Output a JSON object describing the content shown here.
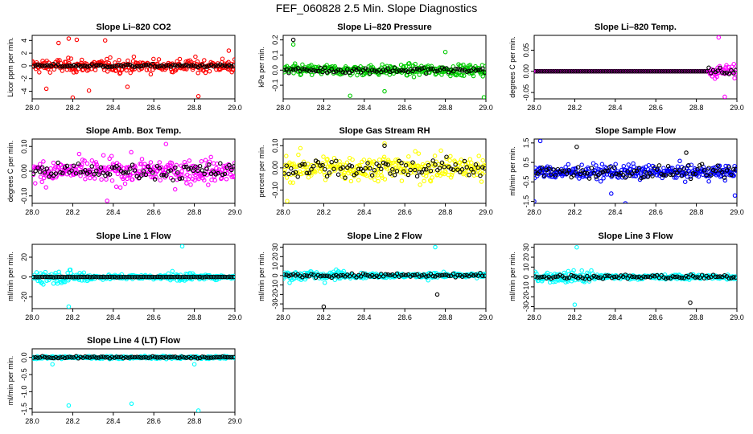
{
  "figure_title": "FEF_060828  2.5 Min. Slope Diagnostics",
  "chart_data": [
    {
      "type": "scatter",
      "title": "Slope Li–820 CO2",
      "ylabel": "Licor ppm per min.",
      "xlabel": "",
      "xlim": [
        28.0,
        29.0
      ],
      "ylim": [
        -5.2,
        4.8
      ],
      "xticks": [
        "28.0",
        "28.2",
        "28.4",
        "28.6",
        "28.8",
        "29.0"
      ],
      "yticks": [
        {
          "v": -4,
          "label": "-4"
        },
        {
          "v": -2,
          "label": "-2"
        },
        {
          "v": 0,
          "label": "0"
        },
        {
          "v": 2,
          "label": "2"
        },
        {
          "v": 4,
          "label": "4"
        }
      ],
      "series": [
        {
          "color": "#ff0000",
          "spread": 1.6,
          "outliers": [
            [
              28.07,
              -3.6
            ],
            [
              28.13,
              3.6
            ],
            [
              28.18,
              4.3
            ],
            [
              28.2,
              -5.0
            ],
            [
              28.22,
              4.1
            ],
            [
              28.28,
              -3.9
            ],
            [
              28.36,
              4.0
            ],
            [
              28.47,
              -3.3
            ],
            [
              28.82,
              -4.8
            ],
            [
              28.97,
              2.4
            ]
          ]
        },
        {
          "color": "#000000",
          "spread": 0.35,
          "outliers": []
        }
      ]
    },
    {
      "type": "scatter",
      "title": "Slope Li–820 Pressure",
      "ylabel": "kPa per min.",
      "xlabel": "",
      "xlim": [
        28.0,
        29.0
      ],
      "ylim": [
        -0.19,
        0.23
      ],
      "xticks": [
        "28.0",
        "28.2",
        "28.4",
        "28.6",
        "28.8",
        "29.0"
      ],
      "yticks": [
        {
          "v": -0.1,
          "label": "-0.1"
        },
        {
          "v": 0.0,
          "label": "0.0"
        },
        {
          "v": 0.1,
          "label": "0.1"
        },
        {
          "v": 0.2,
          "label": "0.2"
        }
      ],
      "series": [
        {
          "color": "#00cc00",
          "spread": 0.055,
          "outliers": [
            [
              28.05,
              0.17
            ],
            [
              28.33,
              -0.17
            ],
            [
              28.5,
              -0.14
            ],
            [
              28.99,
              -0.18
            ],
            [
              28.8,
              0.12
            ]
          ]
        },
        {
          "color": "#000000",
          "spread": 0.03,
          "outliers": [
            [
              28.05,
              0.2
            ]
          ]
        }
      ]
    },
    {
      "type": "scatter",
      "title": "Slope Li–820 Temp.",
      "ylabel": "degrees C per min.",
      "xlabel": "",
      "xlim": [
        28.0,
        29.0
      ],
      "ylim": [
        -0.065,
        0.085
      ],
      "xticks": [
        "28.0",
        "28.2",
        "28.4",
        "28.6",
        "28.8",
        "29.0"
      ],
      "yticks": [
        {
          "v": -0.05,
          "label": "-0.05"
        },
        {
          "v": 0.0,
          "label": "0.00"
        },
        {
          "v": 0.05,
          "label": "0.05"
        }
      ],
      "series": [
        {
          "color": "#ff00ff",
          "spread": 0.0,
          "burst": [
            28.86,
            29.0,
            0.05
          ],
          "outliers": [
            [
              28.91,
              0.08
            ],
            [
              28.94,
              -0.06
            ]
          ]
        },
        {
          "color": "#000000",
          "spread": 0.0,
          "burst": [
            28.86,
            29.0,
            0.03
          ],
          "outliers": []
        }
      ]
    },
    {
      "type": "scatter",
      "title": "Slope Amb. Box Temp.",
      "ylabel": "degrees C per min.",
      "xlabel": "",
      "xlim": [
        28.0,
        29.0
      ],
      "ylim": [
        -0.13,
        0.13
      ],
      "xticks": [
        "28.0",
        "28.2",
        "28.4",
        "28.6",
        "28.8",
        "29.0"
      ],
      "yticks": [
        {
          "v": -0.1,
          "label": "-0.10"
        },
        {
          "v": 0.0,
          "label": "0.00"
        },
        {
          "v": 0.1,
          "label": "0.10"
        }
      ],
      "series": [
        {
          "color": "#ff00ff",
          "spread": 0.075,
          "outliers": [
            [
              28.37,
              -0.12
            ],
            [
              28.66,
              0.11
            ]
          ]
        },
        {
          "color": "#000000",
          "spread": 0.05,
          "outliers": []
        }
      ]
    },
    {
      "type": "scatter",
      "title": "Slope Gas Stream RH",
      "ylabel": "percent per min.",
      "xlabel": "",
      "xlim": [
        28.0,
        29.0
      ],
      "ylim": [
        -0.16,
        0.13
      ],
      "xticks": [
        "28.0",
        "28.2",
        "28.4",
        "28.6",
        "28.8",
        "29.0"
      ],
      "yticks": [
        {
          "v": -0.1,
          "label": "-0.10"
        },
        {
          "v": 0.0,
          "label": "0.00"
        },
        {
          "v": 0.1,
          "label": "0.10"
        }
      ],
      "series": [
        {
          "color": "#ffff00",
          "spread": 0.09,
          "outliers": [
            [
              28.02,
              -0.15
            ],
            [
              28.5,
              0.11
            ]
          ]
        },
        {
          "color": "#000000",
          "spread": 0.07,
          "outliers": [
            [
              28.5,
              0.1
            ]
          ]
        }
      ]
    },
    {
      "type": "scatter",
      "title": "Slope Sample Flow",
      "ylabel": "ml/min per min.",
      "xlabel": "",
      "xlim": [
        28.0,
        29.0
      ],
      "ylim": [
        -1.6,
        1.7
      ],
      "xticks": [
        "28.0",
        "28.2",
        "28.4",
        "28.6",
        "28.8",
        "29.0"
      ],
      "yticks": [
        {
          "v": -1.5,
          "label": "-1.5"
        },
        {
          "v": -0.5,
          "label": "-0.5"
        },
        {
          "v": 0.5,
          "label": "0.5"
        },
        {
          "v": 1.5,
          "label": "1.5"
        }
      ],
      "series": [
        {
          "color": "#0000ff",
          "spread": 0.55,
          "outliers": [
            [
              28.03,
              1.6
            ],
            [
              28.0,
              -1.5
            ],
            [
              28.38,
              -1.1
            ],
            [
              28.45,
              -1.6
            ],
            [
              28.99,
              -1.2
            ]
          ]
        },
        {
          "color": "#000000",
          "spread": 0.5,
          "outliers": [
            [
              28.21,
              1.3
            ],
            [
              28.75,
              1.0
            ]
          ]
        }
      ]
    },
    {
      "type": "scatter",
      "title": "Slope Line 1 Flow",
      "ylabel": "ml/min per min.",
      "xlabel": "",
      "xlim": [
        28.0,
        29.0
      ],
      "ylim": [
        -32,
        33
      ],
      "xticks": [
        "28.0",
        "28.2",
        "28.4",
        "28.6",
        "28.8",
        "29.0"
      ],
      "yticks": [
        {
          "v": -20,
          "label": "-20"
        },
        {
          "v": 0,
          "label": "0"
        },
        {
          "v": 20,
          "label": "20"
        }
      ],
      "series": [
        {
          "color": "#00ffff",
          "spread": 3.5,
          "burst": [
            28.0,
            28.3,
            22
          ],
          "burst2": [
            28.67,
            28.8,
            14
          ],
          "outliers": [
            [
              28.18,
              -30
            ],
            [
              28.74,
              31
            ]
          ]
        },
        {
          "color": "#000000",
          "spread": 0.4,
          "outliers": []
        }
      ]
    },
    {
      "type": "scatter",
      "title": "Slope Line 2 Flow",
      "ylabel": "ml/min per min.",
      "xlabel": "",
      "xlim": [
        28.0,
        29.0
      ],
      "ylim": [
        -35,
        33
      ],
      "xticks": [
        "28.0",
        "28.2",
        "28.4",
        "28.6",
        "28.8",
        "29.0"
      ],
      "yticks": [
        {
          "v": -30,
          "label": "-30"
        },
        {
          "v": -20,
          "label": "-20"
        },
        {
          "v": -10,
          "label": "-10"
        },
        {
          "v": 0,
          "label": "0"
        },
        {
          "v": 10,
          "label": "10"
        },
        {
          "v": 20,
          "label": "20"
        },
        {
          "v": 30,
          "label": "30"
        }
      ],
      "series": [
        {
          "color": "#00ffff",
          "spread": 3.5,
          "burst": [
            28.0,
            28.3,
            20
          ],
          "burst2": [
            28.7,
            28.8,
            12
          ],
          "outliers": [
            [
              28.75,
              30
            ]
          ]
        },
        {
          "color": "#000000",
          "spread": 3.0,
          "outliers": [
            [
              28.2,
              -33
            ],
            [
              28.76,
              -20
            ]
          ]
        }
      ]
    },
    {
      "type": "scatter",
      "title": "Slope Line 3 Flow",
      "ylabel": "ml/min per min.",
      "xlabel": "",
      "xlim": [
        28.0,
        29.0
      ],
      "ylim": [
        -32,
        33
      ],
      "xticks": [
        "28.0",
        "28.2",
        "28.4",
        "28.6",
        "28.8",
        "29.0"
      ],
      "yticks": [
        {
          "v": -30,
          "label": "-30"
        },
        {
          "v": -20,
          "label": "-20"
        },
        {
          "v": -10,
          "label": "-10"
        },
        {
          "v": 0,
          "label": "0"
        },
        {
          "v": 10,
          "label": "10"
        },
        {
          "v": 20,
          "label": "20"
        },
        {
          "v": 30,
          "label": "30"
        }
      ],
      "series": [
        {
          "color": "#00ffff",
          "spread": 3.5,
          "burst": [
            28.0,
            28.3,
            20
          ],
          "burst2": [
            28.7,
            28.8,
            12
          ],
          "outliers": [
            [
              28.21,
              30
            ],
            [
              28.2,
              -28
            ]
          ]
        },
        {
          "color": "#000000",
          "spread": 3.0,
          "outliers": [
            [
              28.77,
              -26
            ]
          ]
        }
      ]
    },
    {
      "type": "scatter",
      "title": "Slope Line 4 (LT) Flow",
      "ylabel": "ml/min per min.",
      "xlabel": "",
      "xlim": [
        28.0,
        29.0
      ],
      "ylim": [
        -1.6,
        0.25
      ],
      "xticks": [
        "28.0",
        "28.2",
        "28.4",
        "28.6",
        "28.8",
        "29.0"
      ],
      "yticks": [
        {
          "v": -1.5,
          "label": "-1.5"
        },
        {
          "v": -1.0,
          "label": "-1.0"
        },
        {
          "v": -0.5,
          "label": "-0.5"
        },
        {
          "v": 0.0,
          "label": "0.0"
        }
      ],
      "series": [
        {
          "color": "#00ffff",
          "spread": 0.06,
          "outliers": [
            [
              28.18,
              -1.4
            ],
            [
              28.49,
              -1.35
            ],
            [
              28.82,
              -1.55
            ],
            [
              28.1,
              -0.2
            ],
            [
              28.8,
              -0.2
            ]
          ]
        },
        {
          "color": "#000000",
          "spread": 0.04,
          "outliers": []
        }
      ]
    }
  ]
}
